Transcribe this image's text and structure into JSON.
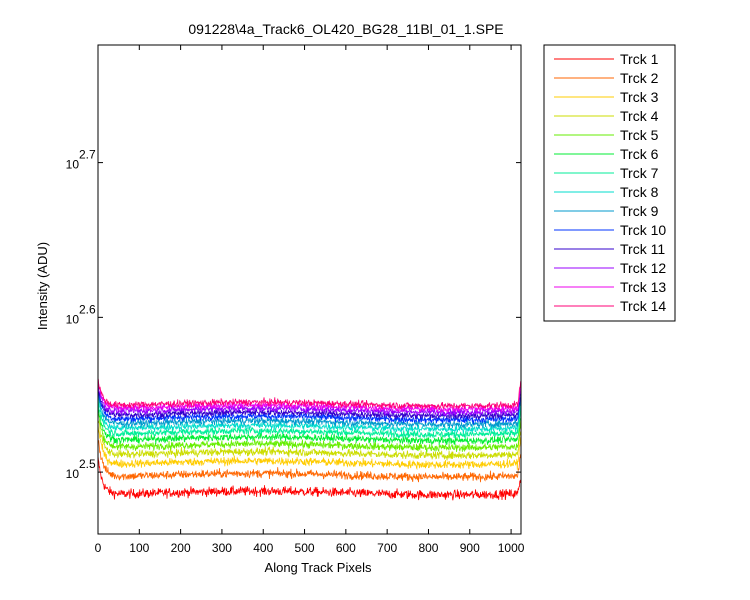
{
  "chart_data": {
    "type": "line",
    "title": "091228\\4a_Track6_OL420_BG28_11Bl_01_1.SPE",
    "xlabel": "Along Track Pixels",
    "ylabel": "Intensity (ADU)",
    "x_scale": "linear",
    "y_scale": "log",
    "xlim": [
      0,
      1024
    ],
    "ylim_log10": [
      2.46,
      2.776
    ],
    "xticks": [
      "0",
      "100",
      "200",
      "300",
      "400",
      "500",
      "600",
      "700",
      "800",
      "900",
      "1000"
    ],
    "yticks": [
      {
        "base": "10",
        "exp": "2.5",
        "log10": 2.5
      },
      {
        "base": "10",
        "exp": "2.6",
        "log10": 2.6
      },
      {
        "base": "10",
        "exp": "2.7",
        "log10": 2.7
      }
    ],
    "legend_position": "outside-right",
    "grid": false,
    "series": [
      {
        "name": "Trck 1",
        "color": "#ff0000",
        "baseline_log10": 2.4865,
        "start_log10": 2.51,
        "end_log10": 2.497,
        "noise": 0.0055
      },
      {
        "name": "Trck 2",
        "color": "#ff6600",
        "baseline_log10": 2.498,
        "start_log10": 2.524,
        "end_log10": 2.512,
        "noise": 0.005
      },
      {
        "name": "Trck 3",
        "color": "#ffcc00",
        "baseline_log10": 2.506,
        "start_log10": 2.532,
        "end_log10": 2.522,
        "noise": 0.0048
      },
      {
        "name": "Trck 4",
        "color": "#ccdd00",
        "baseline_log10": 2.512,
        "start_log10": 2.537,
        "end_log10": 2.528,
        "noise": 0.0046
      },
      {
        "name": "Trck 5",
        "color": "#66ee00",
        "baseline_log10": 2.517,
        "start_log10": 2.541,
        "end_log10": 2.533,
        "noise": 0.0045
      },
      {
        "name": "Trck 6",
        "color": "#00ee33",
        "baseline_log10": 2.5215,
        "start_log10": 2.545,
        "end_log10": 2.537,
        "noise": 0.0044
      },
      {
        "name": "Trck 7",
        "color": "#00ee99",
        "baseline_log10": 2.5255,
        "start_log10": 2.548,
        "end_log10": 2.541,
        "noise": 0.0043
      },
      {
        "name": "Trck 8",
        "color": "#00ddcc",
        "baseline_log10": 2.529,
        "start_log10": 2.551,
        "end_log10": 2.544,
        "noise": 0.0042
      },
      {
        "name": "Trck 9",
        "color": "#0099cc",
        "baseline_log10": 2.532,
        "start_log10": 2.553,
        "end_log10": 2.547,
        "noise": 0.0041
      },
      {
        "name": "Trck 10",
        "color": "#0033ff",
        "baseline_log10": 2.535,
        "start_log10": 2.555,
        "end_log10": 2.55,
        "noise": 0.004
      },
      {
        "name": "Trck 11",
        "color": "#3300cc",
        "baseline_log10": 2.5375,
        "start_log10": 2.557,
        "end_log10": 2.552,
        "noise": 0.004
      },
      {
        "name": "Trck 12",
        "color": "#9900ff",
        "baseline_log10": 2.54,
        "start_log10": 2.558,
        "end_log10": 2.554,
        "noise": 0.0039
      },
      {
        "name": "Trck 13",
        "color": "#ee00ee",
        "baseline_log10": 2.542,
        "start_log10": 2.56,
        "end_log10": 2.556,
        "noise": 0.0039
      },
      {
        "name": "Trck 14",
        "color": "#ff0077",
        "baseline_log10": 2.544,
        "start_log10": 2.561,
        "end_log10": 2.558,
        "noise": 0.0039
      }
    ]
  }
}
